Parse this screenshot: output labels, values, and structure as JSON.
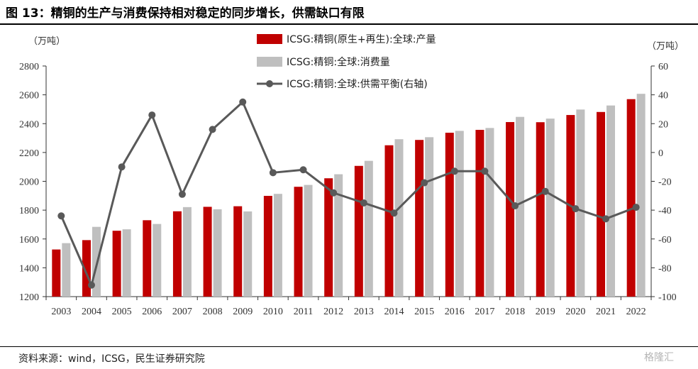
{
  "header": {
    "title": "图 13：精铜的生产与消费保持相对稳定的同步增长，供需缺口有限"
  },
  "footer": {
    "source": "资料来源：wind，ICSG，民生证券研究院",
    "watermark": "格隆汇"
  },
  "chart_data": {
    "type": "bar",
    "categories": [
      "2003",
      "2004",
      "2005",
      "2006",
      "2007",
      "2008",
      "2009",
      "2010",
      "2011",
      "2012",
      "2013",
      "2014",
      "2015",
      "2016",
      "2017",
      "2018",
      "2019",
      "2020",
      "2021",
      "2022"
    ],
    "left_unit": "（万吨）",
    "right_unit": "（万吨）",
    "ylim": [
      1200,
      2800
    ],
    "y_ticks": [
      1200,
      1400,
      1600,
      1800,
      2000,
      2200,
      2400,
      2600,
      2800
    ],
    "y2lim": [
      -100,
      60
    ],
    "y2_ticks": [
      -100,
      -80,
      -60,
      -40,
      -20,
      0,
      20,
      40,
      60
    ],
    "grid": false,
    "legend_position": "top-center",
    "series": [
      {
        "name": "ICSG:精铜(原生+再生):全球:产量",
        "kind": "bar",
        "axis": "left",
        "color": "#c00000",
        "values": [
          1527,
          1592,
          1657,
          1730,
          1792,
          1823,
          1827,
          1899,
          1962,
          2021,
          2107,
          2250,
          2287,
          2337,
          2357,
          2411,
          2410,
          2460,
          2481,
          2570
        ]
      },
      {
        "name": "ICSG:精铜:全球:消费量",
        "kind": "bar",
        "axis": "left",
        "color": "#bfbfbf",
        "values": [
          1571,
          1684,
          1667,
          1704,
          1821,
          1806,
          1791,
          1913,
          1975,
          2049,
          2142,
          2292,
          2306,
          2350,
          2370,
          2447,
          2435,
          2498,
          2526,
          2607
        ]
      },
      {
        "name": "ICSG:精铜:全球:供需平衡(右轴)",
        "kind": "line",
        "axis": "right",
        "color": "#595959",
        "values": [
          -44,
          -92,
          -10,
          26,
          -29,
          16,
          35,
          -14,
          -12,
          -28,
          -35,
          -42,
          -21,
          -13,
          -13,
          -37,
          -27,
          -39,
          -46,
          -38
        ]
      }
    ]
  }
}
